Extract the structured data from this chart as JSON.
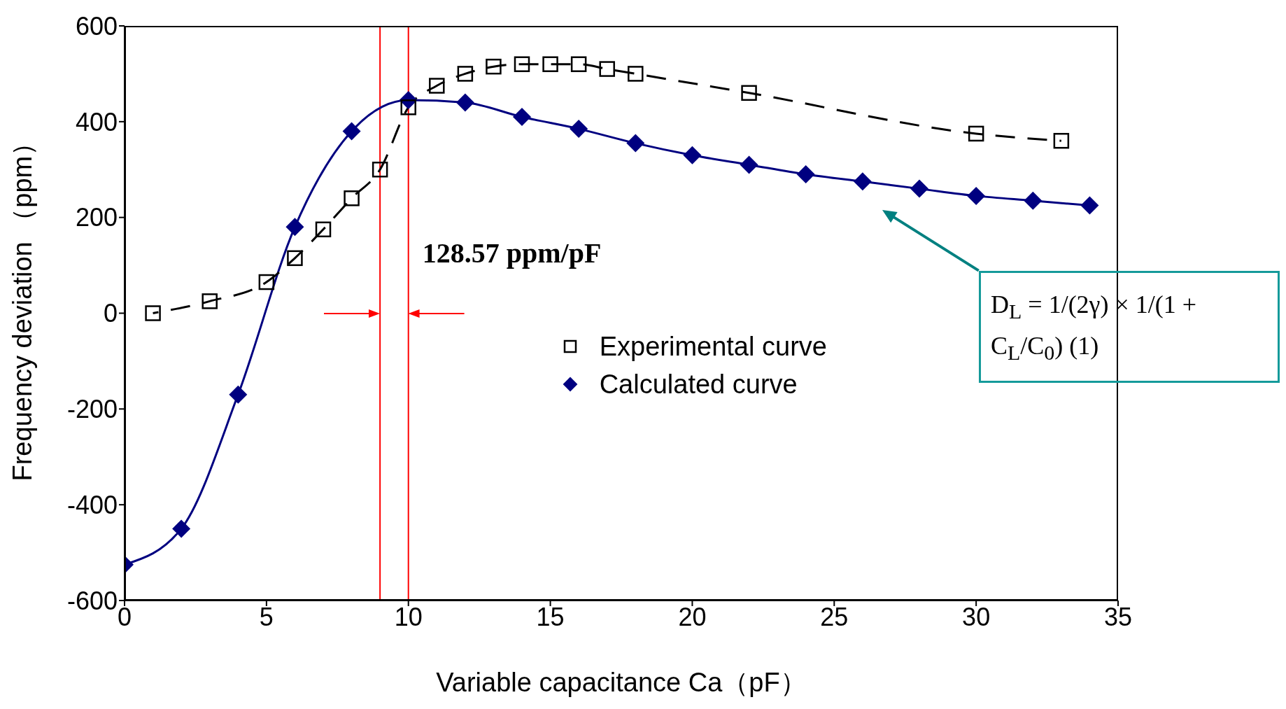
{
  "chart_data": {
    "type": "line",
    "xlabel": "Variable capacitance  Ca（pF）",
    "ylabel": "Frequency deviation （ppm）",
    "xlim": [
      0,
      35
    ],
    "xticks": [
      0,
      5,
      10,
      15,
      20,
      25,
      30,
      35
    ],
    "ylim": [
      -600,
      600
    ],
    "yticks": [
      -600,
      -400,
      -200,
      0,
      200,
      400,
      600
    ],
    "grid": false,
    "legend": "right",
    "series": [
      {
        "name": "Experimental curve",
        "color": "#000000",
        "marker": "square",
        "line_style": "dashed",
        "x": [
          1,
          3,
          5,
          6,
          7,
          8,
          9,
          10,
          11,
          12,
          13,
          14,
          15,
          16,
          17,
          18,
          22,
          30,
          33
        ],
        "values": [
          0,
          25,
          65,
          115,
          175,
          240,
          300,
          430,
          475,
          500,
          515,
          520,
          520,
          520,
          510,
          500,
          460,
          375,
          360
        ]
      },
      {
        "name": "Calculated curve",
        "color": "#000080",
        "marker": "diamond",
        "line_style": "solid",
        "x": [
          0,
          2,
          4,
          6,
          8,
          10,
          12,
          14,
          16,
          18,
          20,
          22,
          24,
          26,
          28,
          30,
          32,
          34
        ],
        "values": [
          -525,
          -450,
          -170,
          180,
          380,
          445,
          440,
          410,
          385,
          355,
          330,
          310,
          290,
          275,
          260,
          245,
          235,
          225
        ]
      }
    ],
    "ref_lines": [
      {
        "axis": "x",
        "value": 9,
        "color": "#ff0000"
      },
      {
        "axis": "x",
        "value": 10,
        "color": "#ff0000"
      }
    ],
    "annotations": [
      "128.57 ppm/pF",
      "D$_{L}$ = 1/(2γ) × 1/(1 + C$_{L}$/C$_{0}$)   (1)"
    ]
  }
}
